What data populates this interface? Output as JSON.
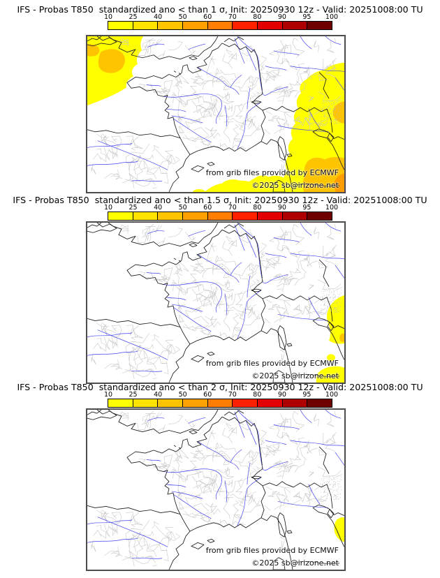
{
  "panels": [
    {
      "title": "IFS - Probas T850  standardized ano < than 1 σ, Init: 20250930 12z - Valid: 20251008:00 TU"
    },
    {
      "title": "IFS - Probas T850  standardized ano < than 1.5 σ, Init: 20250930 12z - Valid: 20251008:00 TU"
    },
    {
      "title": "IFS - Probas T850  standardized ano < than 2 σ, Init: 20250930 12z - Valid: 20251008:00 TU"
    }
  ],
  "colorbar": {
    "tick_labels": [
      "10",
      "25",
      "40",
      "50",
      "60",
      "70",
      "80",
      "90",
      "95",
      "100"
    ],
    "segment_colors": [
      "#ffff00",
      "#ffe300",
      "#ffc400",
      "#ffa200",
      "#ff7d00",
      "#ff2000",
      "#e30000",
      "#ae0000",
      "#6f0000"
    ]
  },
  "map": {
    "credit_line1": "from grib files provided by ECMWF",
    "credit_line2": "©2025 sb@irizone.net",
    "colors": {
      "background": "#ffffff",
      "coastline": "#1c1c1c",
      "rivers": "#4343ee",
      "admin_boundaries": "#c8c8c8",
      "prob_10_25": "#ffff00",
      "prob_25_40": "#ffc400",
      "prob_40_50": "#ff9d00",
      "border": "#4d4d4d"
    }
  }
}
